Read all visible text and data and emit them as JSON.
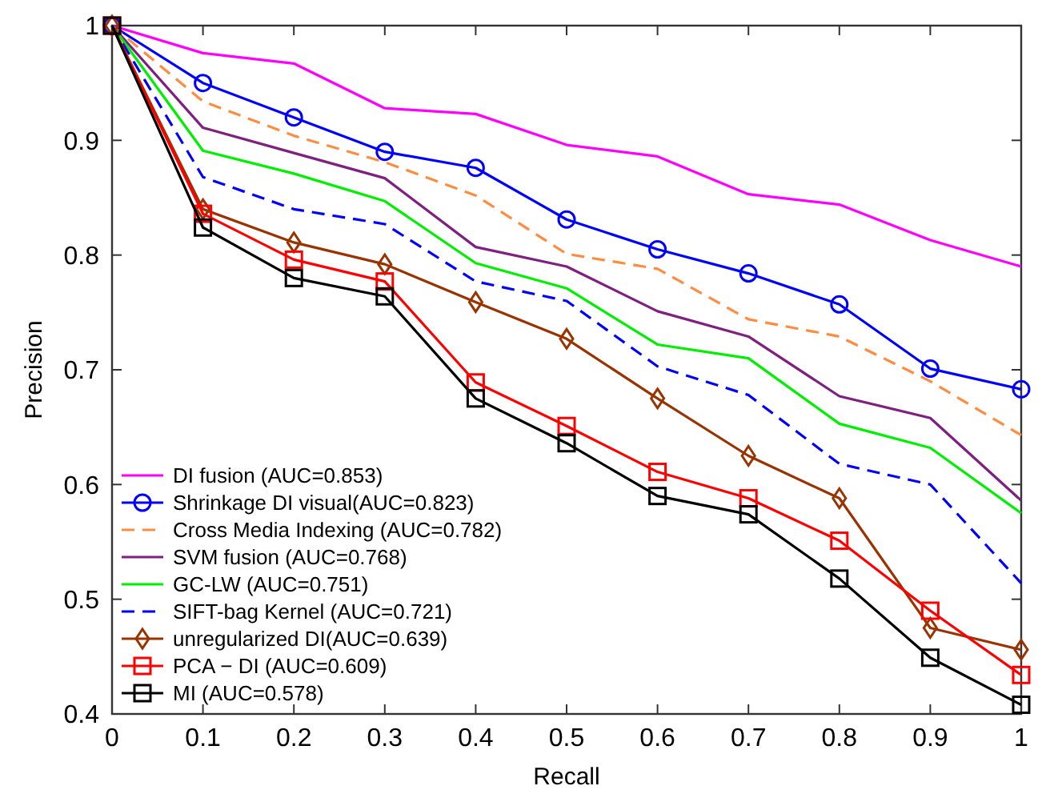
{
  "chart_data": {
    "type": "line",
    "xlabel": "Recall",
    "ylabel": "Precision",
    "x": [
      0,
      0.1,
      0.2,
      0.3,
      0.4,
      0.5,
      0.6,
      0.7,
      0.8,
      0.9,
      1
    ],
    "xlim": [
      0,
      1
    ],
    "ylim": [
      0.4,
      1
    ],
    "xticks": [
      0,
      0.1,
      0.2,
      0.3,
      0.4,
      0.5,
      0.6,
      0.7,
      0.8,
      0.9,
      1
    ],
    "yticks": [
      0.4,
      0.5,
      0.6,
      0.7,
      0.8,
      0.9,
      1
    ],
    "legend": "bottom left",
    "grid": false,
    "series": [
      {
        "name": "DI fusion (AUC=0.853)",
        "color": "#ff00ff",
        "marker": "none",
        "line_style": "solid",
        "values": [
          1,
          0.976,
          0.967,
          0.928,
          0.923,
          0.896,
          0.886,
          0.853,
          0.844,
          0.813,
          0.79
        ]
      },
      {
        "name": "Shrinkage DI visual(AUC=0.823)",
        "color": "#0000ff",
        "marker": "circle",
        "line_style": "solid",
        "values": [
          1,
          0.95,
          0.92,
          0.89,
          0.876,
          0.831,
          0.805,
          0.784,
          0.757,
          0.701,
          0.683
        ]
      },
      {
        "name": "Cross Media Indexing (AUC=0.782)",
        "color": "#ff8c40",
        "marker": "none",
        "line_style": "dashed",
        "values": [
          1,
          0.934,
          0.904,
          0.881,
          0.852,
          0.801,
          0.788,
          0.744,
          0.729,
          0.69,
          0.643
        ]
      },
      {
        "name": "SVM  fusion (AUC=0.768)",
        "color": "#7f1f7f",
        "marker": "none",
        "line_style": "solid",
        "values": [
          1,
          0.911,
          0.889,
          0.867,
          0.807,
          0.79,
          0.751,
          0.729,
          0.677,
          0.658,
          0.586
        ]
      },
      {
        "name": "GC-LW (AUC=0.751)",
        "color": "#00ee00",
        "marker": "none",
        "line_style": "solid",
        "values": [
          1,
          0.891,
          0.871,
          0.847,
          0.793,
          0.771,
          0.722,
          0.71,
          0.653,
          0.632,
          0.575
        ]
      },
      {
        "name": "SIFT-bag Kernel (AUC=0.721)",
        "color": "#0000ff",
        "marker": "none",
        "line_style": "dashed",
        "values": [
          1,
          0.868,
          0.84,
          0.827,
          0.777,
          0.76,
          0.703,
          0.678,
          0.618,
          0.6,
          0.514
        ]
      },
      {
        "name": "unregularized DI(AUC=0.639)",
        "color": "#993300",
        "marker": "diamond",
        "line_style": "solid",
        "values": [
          1,
          0.84,
          0.811,
          0.792,
          0.759,
          0.727,
          0.675,
          0.625,
          0.588,
          0.475,
          0.456
        ]
      },
      {
        "name": "PCA − DI (AUC=0.609)",
        "color": "#ff0000",
        "marker": "square",
        "line_style": "solid",
        "values": [
          1,
          0.836,
          0.796,
          0.777,
          0.689,
          0.651,
          0.611,
          0.588,
          0.551,
          0.49,
          0.434
        ]
      },
      {
        "name": "MI (AUC=0.578)",
        "color": "#000000",
        "marker": "square",
        "line_style": "solid",
        "values": [
          1,
          0.824,
          0.78,
          0.764,
          0.675,
          0.636,
          0.59,
          0.574,
          0.518,
          0.449,
          0.408
        ]
      }
    ]
  }
}
